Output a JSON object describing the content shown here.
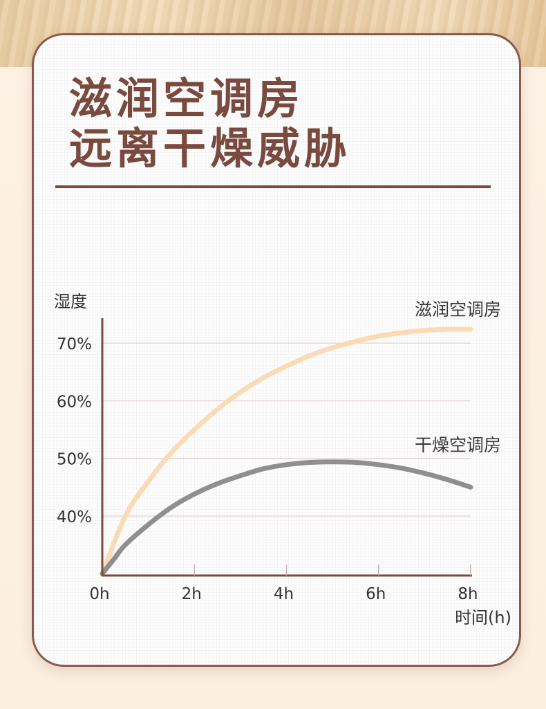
{
  "header": {
    "title_line1": "滋润空调房",
    "title_line2": "远离干燥威胁"
  },
  "colors": {
    "title": "#7a4a3e",
    "axis": "#7a4a3e",
    "grid": "#dcc8c8",
    "series_moist": "#fbdbb5",
    "series_dry": "#8f8f8f"
  },
  "chart_data": {
    "type": "line",
    "ylabel": "湿度",
    "xlabel": "时间(h)",
    "x_ticks": [
      "0h",
      "2h",
      "4h",
      "6h",
      "8h"
    ],
    "x_tick_values": [
      0,
      2,
      4,
      6,
      8
    ],
    "y_ticks": [
      "40%",
      "50%",
      "60%",
      "70%"
    ],
    "y_tick_values": [
      40,
      50,
      60,
      70
    ],
    "xlim": [
      0,
      8
    ],
    "ylim": [
      30,
      74
    ],
    "grid": true,
    "series": [
      {
        "name": "滋润空调房",
        "x": [
          0,
          0.5,
          1,
          1.5,
          2,
          2.5,
          3,
          3.5,
          4,
          4.5,
          5,
          5.5,
          6,
          6.5,
          7,
          7.5,
          8
        ],
        "y": [
          30,
          40,
          46,
          51,
          55,
          58.5,
          61.5,
          64,
          66,
          67.8,
          69.2,
          70.3,
          71.2,
          71.8,
          72.2,
          72.4,
          72.4
        ]
      },
      {
        "name": "干燥空调房",
        "x": [
          0,
          0.25,
          0.5,
          1,
          1.5,
          2,
          2.5,
          3,
          3.5,
          4,
          4.5,
          5,
          5.5,
          6,
          6.5,
          7,
          7.5,
          8
        ],
        "y": [
          30,
          32.5,
          35,
          38.5,
          41.5,
          43.8,
          45.6,
          47,
          48.2,
          48.9,
          49.3,
          49.4,
          49.3,
          48.9,
          48.3,
          47.4,
          46.3,
          45
        ]
      }
    ]
  }
}
